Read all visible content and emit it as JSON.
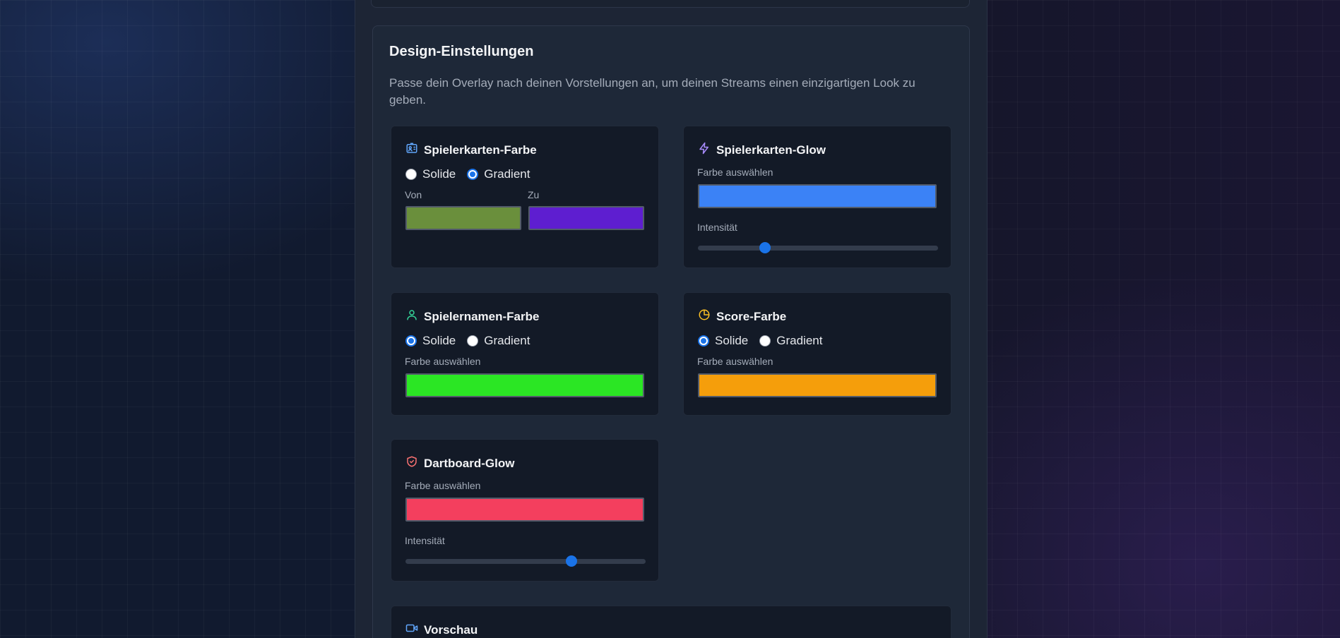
{
  "section": {
    "title": "Design-Einstellungen",
    "description": "Passe dein Overlay nach deinen Vorstellungen an, um deinen Streams einen einzigartigen Look zu geben."
  },
  "cards": {
    "card_color": {
      "title": "Spielerkarten-Farbe",
      "icon": "id-card-icon",
      "radio_solid": "Solide",
      "radio_gradient": "Gradient",
      "selected": "gradient",
      "from_label": "Von",
      "to_label": "Zu",
      "from_color": "#6a8f3c",
      "to_color": "#5e1ed0"
    },
    "card_glow": {
      "title": "Spielerkarten-Glow",
      "icon": "zap-icon",
      "color_label": "Farbe auswählen",
      "color": "#3b82f6",
      "intensity_label": "Intensität",
      "intensity": 0.28
    },
    "name_color": {
      "title": "Spielernamen-Farbe",
      "icon": "user-icon",
      "radio_solid": "Solide",
      "radio_gradient": "Gradient",
      "selected": "solid",
      "color_label": "Farbe auswählen",
      "color": "#2be624"
    },
    "score_color": {
      "title": "Score-Farbe",
      "icon": "pie-chart-icon",
      "radio_solid": "Solide",
      "radio_gradient": "Gradient",
      "selected": "solid",
      "color_label": "Farbe auswählen",
      "color": "#f59e0b"
    },
    "dartboard_glow": {
      "title": "Dartboard-Glow",
      "icon": "shield-check-icon",
      "color_label": "Farbe auswählen",
      "color": "#f43f5e",
      "intensity_label": "Intensität",
      "intensity": 0.69
    },
    "preview": {
      "title": "Vorschau",
      "icon": "video-icon"
    }
  },
  "colors": {
    "accent": "#1a73e8"
  }
}
